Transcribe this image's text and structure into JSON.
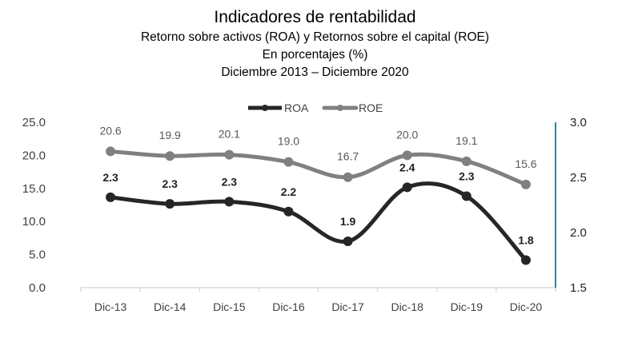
{
  "chart_data": {
    "type": "line",
    "title": "Indicadores de rentabilidad",
    "subtitle": [
      "Retorno sobre activos (ROA) y Retornos sobre el capital (ROE)",
      "En porcentajes (%)",
      "Diciembre 2013 – Diciembre 2020"
    ],
    "categories": [
      "Dic-13",
      "Dic-14",
      "Dic-15",
      "Dic-16",
      "Dic-17",
      "Dic-18",
      "Dic-19",
      "Dic-20"
    ],
    "series": [
      {
        "name": "ROA",
        "axis": "right",
        "color": "#262626",
        "values": [
          2.32,
          2.26,
          2.28,
          2.19,
          1.92,
          2.41,
          2.33,
          1.75
        ],
        "labels": [
          "2.3",
          "2.3",
          "2.3",
          "2.2",
          "1.9",
          "2.4",
          "2.3",
          "1.8"
        ]
      },
      {
        "name": "ROE",
        "axis": "left",
        "color": "#808080",
        "values": [
          20.6,
          19.9,
          20.1,
          19.0,
          16.7,
          20.0,
          19.1,
          15.6
        ],
        "labels": [
          "20.6",
          "19.9",
          "20.1",
          "19.0",
          "16.7",
          "20.0",
          "19.1",
          "15.6"
        ]
      }
    ],
    "y_left": {
      "ylim": [
        0,
        25
      ],
      "ticks": [
        "0.0",
        "5.0",
        "10.0",
        "15.0",
        "20.0",
        "25.0"
      ]
    },
    "y_right": {
      "ylim": [
        1.5,
        3.0
      ],
      "ticks": [
        "1.5",
        "2.0",
        "2.5",
        "3.0"
      ],
      "axis_color": "#31859C"
    },
    "xlabel": "",
    "ylabel": "",
    "grid": false,
    "legend": {
      "position": "top-center",
      "entries": [
        "ROA",
        "ROE"
      ]
    }
  }
}
